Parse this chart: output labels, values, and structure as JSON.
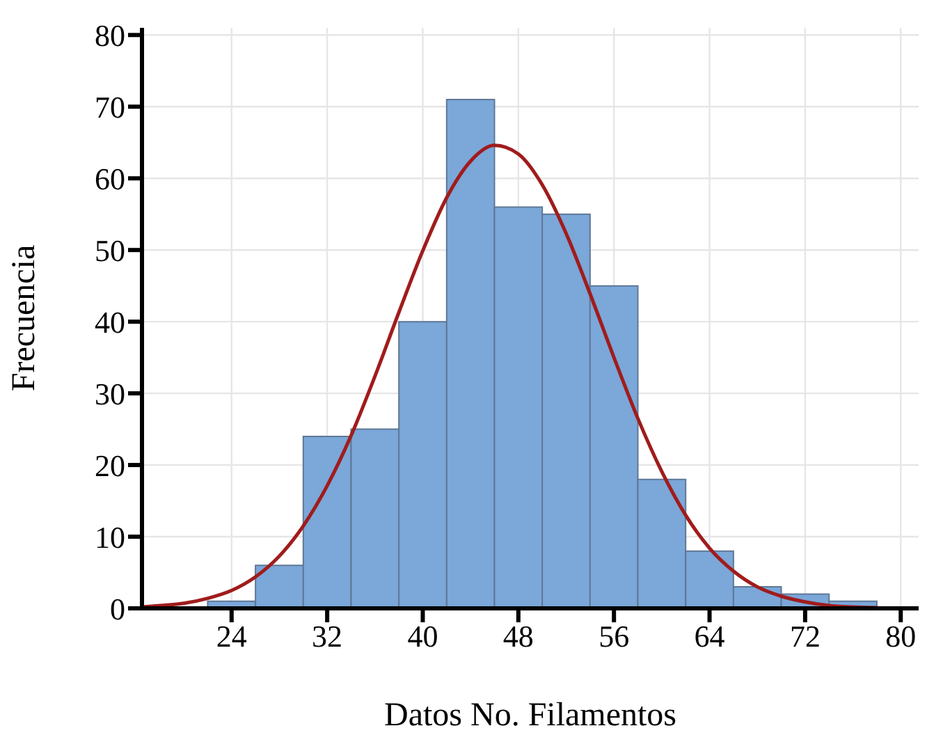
{
  "chart_data": {
    "type": "histogram",
    "xlabel": "Datos No. Filamentos",
    "ylabel": "Frecuencia",
    "bins": [
      22,
      26,
      30,
      34,
      38,
      42,
      46,
      50,
      54,
      58,
      62,
      66,
      70,
      74,
      78
    ],
    "series": [
      {
        "color": "#7ba7d9",
        "values": [
          1,
          6,
          24,
          25,
          40,
          71,
          56,
          55,
          45,
          18,
          8,
          3,
          2,
          1
        ]
      },
      {
        "type": "line",
        "color": "#a01c1c",
        "x": [
          16.5,
          18,
          20,
          22,
          24,
          26,
          28,
          30,
          32,
          34,
          36,
          38,
          40,
          42,
          44,
          46,
          48,
          50,
          52,
          54,
          56,
          58,
          60,
          62,
          64,
          66,
          68,
          70,
          72,
          74,
          76,
          78
        ],
        "values": [
          0.2,
          0.4,
          0.7,
          1.4,
          2.5,
          4.4,
          7.3,
          11.5,
          17.1,
          24.1,
          32.4,
          41.3,
          49.9,
          57.3,
          62.4,
          64.6,
          63.4,
          59.1,
          52.3,
          43.9,
          35,
          26.5,
          19.1,
          13,
          8.4,
          5.2,
          3,
          1.7,
          0.9,
          0.4,
          0.2,
          0.1
        ]
      }
    ],
    "xlim": [
      16.5,
      81.5
    ],
    "xticks": [
      24,
      32,
      40,
      48,
      56,
      64,
      72,
      80
    ],
    "ylim": [
      0,
      81
    ],
    "yticks": [
      0,
      10,
      20,
      30,
      40,
      50,
      60,
      70,
      80
    ],
    "grid": true,
    "marker": "none",
    "line_style": "solid"
  }
}
